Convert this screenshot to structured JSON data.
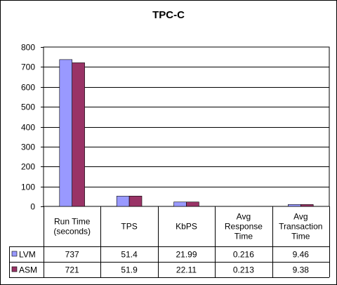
{
  "chart_data": {
    "type": "bar",
    "title": "TPC-C",
    "categories": [
      [
        "Run Time",
        "(seconds)"
      ],
      [
        "TPS"
      ],
      [
        "KbPS"
      ],
      [
        "Avg",
        "Response",
        "Time"
      ],
      [
        "Avg",
        "Transaction",
        "Time"
      ]
    ],
    "series": [
      {
        "name": "LVM",
        "color": "#9999FF",
        "values": [
          737,
          51.4,
          21.99,
          0.216,
          9.46
        ],
        "labels": [
          "737",
          "51.4",
          "21.99",
          "0.216",
          "9.46"
        ]
      },
      {
        "name": "ASM",
        "color": "#993366",
        "values": [
          721,
          51.9,
          22.11,
          0.213,
          9.38
        ],
        "labels": [
          "721",
          "51.9",
          "22.11",
          "0.213",
          "9.38"
        ]
      }
    ],
    "ylim": [
      0,
      800
    ],
    "yticks": [
      0,
      100,
      200,
      300,
      400,
      500,
      600,
      700,
      800
    ],
    "grid": true,
    "plot_background": "#ffffff",
    "legend": "data-table",
    "data_table": true
  }
}
